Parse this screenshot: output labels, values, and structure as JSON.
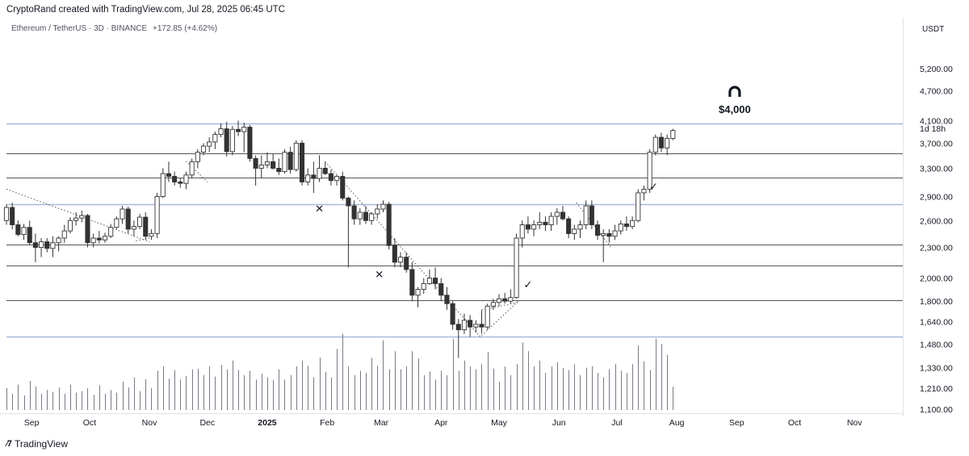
{
  "header": {
    "text": "CryptoRand created with TradingView.com, Jul 28, 2025 06:45 UTC"
  },
  "symbol": {
    "name": "Ethereum / TetherUS · 3D · BINANCE",
    "change": "+172.85 (+4.62%)"
  },
  "currency": "USDT",
  "countdown": "1d 18h",
  "footer": {
    "brand": "TradingView",
    "logo": "tradingview-logo-icon"
  },
  "chart_data": {
    "type": "candlestick",
    "yaxis": {
      "ticks": [
        1100,
        1210,
        1330,
        1480,
        1640,
        1800,
        2000,
        2300,
        2600,
        2900,
        3300,
        3700,
        4100,
        4700,
        5200
      ],
      "tick_labels": [
        "1,100.00",
        "1,210.00",
        "1,330.00",
        "1,480.00",
        "1,640.00",
        "1,800.00",
        "2,000.00",
        "2,300.00",
        "2,600.00",
        "2,900.00",
        "3,300.00",
        "3,700.00",
        "4,100.00",
        "4,700.00",
        "5,200.00"
      ],
      "scale": "log",
      "range": [
        1080,
        6000
      ]
    },
    "xaxis": {
      "labels": [
        {
          "date": "2024-09-01",
          "text": "Sep"
        },
        {
          "date": "2024-10-01",
          "text": "Oct"
        },
        {
          "date": "2024-11-01",
          "text": "Nov"
        },
        {
          "date": "2024-12-01",
          "text": "Dec"
        },
        {
          "date": "2025-01-01",
          "text": "2025"
        },
        {
          "date": "2025-02-01",
          "text": "Feb"
        },
        {
          "date": "2025-03-01",
          "text": "Mar"
        },
        {
          "date": "2025-04-01",
          "text": "Apr"
        },
        {
          "date": "2025-05-01",
          "text": "May"
        },
        {
          "date": "2025-06-01",
          "text": "Jun"
        },
        {
          "date": "2025-07-01",
          "text": "Jul"
        },
        {
          "date": "2025-08-01",
          "text": "Aug"
        },
        {
          "date": "2025-09-01",
          "text": "Sep"
        },
        {
          "date": "2025-10-01",
          "text": "Oct"
        },
        {
          "date": "2025-11-01",
          "text": "Nov"
        }
      ],
      "range": [
        "2024-08-19",
        "2025-11-26"
      ]
    },
    "levels": [
      {
        "price": 4050,
        "color": "#a9b8de"
      },
      {
        "price": 3530,
        "color": "#555555"
      },
      {
        "price": 3160,
        "color": "#555555"
      },
      {
        "price": 2800,
        "color": "#a9b8de"
      },
      {
        "price": 2330,
        "color": "#555555"
      },
      {
        "price": 2115,
        "color": "#555555"
      },
      {
        "price": 1810,
        "color": "#555555"
      },
      {
        "price": 1530,
        "color": "#a9b8de"
      }
    ],
    "trendlines": [
      {
        "from": [
          "2024-08-19",
          3000
        ],
        "to": [
          "2024-11-01",
          2360
        ]
      },
      {
        "from": [
          "2024-10-25",
          2370
        ],
        "to": [
          "2024-11-01",
          2400
        ]
      },
      {
        "from": [
          "2024-11-20",
          3410
        ],
        "to": [
          "2024-12-01",
          3100
        ]
      },
      {
        "from": [
          "2025-01-31",
          3400
        ],
        "to": [
          "2025-04-22",
          1520
        ]
      },
      {
        "from": [
          "2025-04-22",
          1540
        ],
        "to": [
          "2025-05-11",
          1800
        ]
      },
      {
        "from": [
          "2025-04-22",
          1730
        ],
        "to": [
          "2025-05-11",
          1790
        ]
      },
      {
        "from": [
          "2025-04-22",
          1730
        ],
        "to": [
          "2025-04-22",
          1540
        ]
      },
      {
        "from": [
          "2025-06-10",
          2820
        ],
        "to": [
          "2025-06-28",
          2300
        ]
      }
    ],
    "markers": [
      {
        "symbol": "✕",
        "date": "2025-01-28",
        "price": 2700
      },
      {
        "symbol": "✕",
        "date": "2025-02-28",
        "price": 2000
      },
      {
        "symbol": "✓",
        "date": "2025-05-16",
        "price": 1910
      },
      {
        "symbol": "✓",
        "date": "2025-07-20",
        "price": 2990
      }
    ],
    "target": {
      "text": "$4,000",
      "icon": "magnet-icon",
      "date": "2025-08-31"
    },
    "candles": [
      {
        "d": "2024-08-19",
        "o": 2600,
        "h": 2800,
        "l": 2550,
        "c": 2760
      },
      {
        "d": "2024-08-22",
        "o": 2760,
        "h": 2820,
        "l": 2500,
        "c": 2550
      },
      {
        "d": "2024-08-25",
        "o": 2550,
        "h": 2600,
        "l": 2420,
        "c": 2440
      },
      {
        "d": "2024-08-28",
        "o": 2440,
        "h": 2560,
        "l": 2380,
        "c": 2520
      },
      {
        "d": "2024-08-31",
        "o": 2520,
        "h": 2600,
        "l": 2330,
        "c": 2350
      },
      {
        "d": "2024-09-03",
        "o": 2350,
        "h": 2450,
        "l": 2150,
        "c": 2300
      },
      {
        "d": "2024-09-06",
        "o": 2300,
        "h": 2400,
        "l": 2200,
        "c": 2360
      },
      {
        "d": "2024-09-09",
        "o": 2360,
        "h": 2400,
        "l": 2250,
        "c": 2290
      },
      {
        "d": "2024-09-12",
        "o": 2290,
        "h": 2420,
        "l": 2200,
        "c": 2350
      },
      {
        "d": "2024-09-15",
        "o": 2350,
        "h": 2420,
        "l": 2260,
        "c": 2400
      },
      {
        "d": "2024-09-18",
        "o": 2400,
        "h": 2550,
        "l": 2350,
        "c": 2480
      },
      {
        "d": "2024-09-21",
        "o": 2480,
        "h": 2640,
        "l": 2450,
        "c": 2600
      },
      {
        "d": "2024-09-24",
        "o": 2600,
        "h": 2700,
        "l": 2540,
        "c": 2630
      },
      {
        "d": "2024-09-27",
        "o": 2630,
        "h": 2720,
        "l": 2580,
        "c": 2660
      },
      {
        "d": "2024-09-30",
        "o": 2660,
        "h": 2680,
        "l": 2300,
        "c": 2350
      },
      {
        "d": "2024-10-03",
        "o": 2350,
        "h": 2450,
        "l": 2300,
        "c": 2400
      },
      {
        "d": "2024-10-06",
        "o": 2400,
        "h": 2480,
        "l": 2340,
        "c": 2380
      },
      {
        "d": "2024-10-09",
        "o": 2380,
        "h": 2460,
        "l": 2350,
        "c": 2420
      },
      {
        "d": "2024-10-12",
        "o": 2420,
        "h": 2560,
        "l": 2400,
        "c": 2520
      },
      {
        "d": "2024-10-15",
        "o": 2520,
        "h": 2650,
        "l": 2500,
        "c": 2620
      },
      {
        "d": "2024-10-18",
        "o": 2620,
        "h": 2780,
        "l": 2560,
        "c": 2740
      },
      {
        "d": "2024-10-21",
        "o": 2740,
        "h": 2770,
        "l": 2450,
        "c": 2500
      },
      {
        "d": "2024-10-24",
        "o": 2500,
        "h": 2600,
        "l": 2420,
        "c": 2530
      },
      {
        "d": "2024-10-27",
        "o": 2530,
        "h": 2680,
        "l": 2500,
        "c": 2640
      },
      {
        "d": "2024-10-30",
        "o": 2640,
        "h": 2700,
        "l": 2380,
        "c": 2420
      },
      {
        "d": "2024-11-02",
        "o": 2420,
        "h": 2500,
        "l": 2380,
        "c": 2450
      },
      {
        "d": "2024-11-05",
        "o": 2450,
        "h": 2950,
        "l": 2400,
        "c": 2900
      },
      {
        "d": "2024-11-08",
        "o": 2900,
        "h": 3300,
        "l": 2880,
        "c": 3220
      },
      {
        "d": "2024-11-11",
        "o": 3220,
        "h": 3400,
        "l": 3100,
        "c": 3180
      },
      {
        "d": "2024-11-14",
        "o": 3180,
        "h": 3250,
        "l": 3050,
        "c": 3100
      },
      {
        "d": "2024-11-17",
        "o": 3100,
        "h": 3150,
        "l": 3020,
        "c": 3080
      },
      {
        "d": "2024-11-20",
        "o": 3080,
        "h": 3250,
        "l": 3000,
        "c": 3200
      },
      {
        "d": "2024-11-23",
        "o": 3200,
        "h": 3450,
        "l": 3150,
        "c": 3400
      },
      {
        "d": "2024-11-26",
        "o": 3400,
        "h": 3600,
        "l": 3300,
        "c": 3550
      },
      {
        "d": "2024-11-29",
        "o": 3550,
        "h": 3700,
        "l": 3500,
        "c": 3650
      },
      {
        "d": "2024-12-02",
        "o": 3650,
        "h": 3800,
        "l": 3550,
        "c": 3720
      },
      {
        "d": "2024-12-05",
        "o": 3720,
        "h": 3900,
        "l": 3600,
        "c": 3850
      },
      {
        "d": "2024-12-08",
        "o": 3850,
        "h": 4050,
        "l": 3800,
        "c": 3950
      },
      {
        "d": "2024-12-11",
        "o": 3950,
        "h": 4080,
        "l": 3480,
        "c": 3560
      },
      {
        "d": "2024-12-14",
        "o": 3560,
        "h": 4000,
        "l": 3500,
        "c": 3940
      },
      {
        "d": "2024-12-17",
        "o": 3940,
        "h": 4100,
        "l": 3820,
        "c": 3900
      },
      {
        "d": "2024-12-20",
        "o": 3900,
        "h": 4060,
        "l": 3550,
        "c": 3980
      },
      {
        "d": "2024-12-23",
        "o": 3980,
        "h": 4020,
        "l": 3400,
        "c": 3450
      },
      {
        "d": "2024-12-26",
        "o": 3450,
        "h": 3500,
        "l": 3050,
        "c": 3300
      },
      {
        "d": "2024-12-29",
        "o": 3300,
        "h": 3500,
        "l": 3150,
        "c": 3350
      },
      {
        "d": "2025-01-01",
        "o": 3350,
        "h": 3550,
        "l": 3300,
        "c": 3400
      },
      {
        "d": "2025-01-04",
        "o": 3400,
        "h": 3520,
        "l": 3280,
        "c": 3300
      },
      {
        "d": "2025-01-07",
        "o": 3300,
        "h": 3450,
        "l": 3200,
        "c": 3250
      },
      {
        "d": "2025-01-10",
        "o": 3250,
        "h": 3600,
        "l": 3220,
        "c": 3550
      },
      {
        "d": "2025-01-13",
        "o": 3550,
        "h": 3640,
        "l": 3220,
        "c": 3280
      },
      {
        "d": "2025-01-16",
        "o": 3280,
        "h": 3750,
        "l": 3250,
        "c": 3700
      },
      {
        "d": "2025-01-19",
        "o": 3700,
        "h": 3750,
        "l": 3050,
        "c": 3100
      },
      {
        "d": "2025-01-22",
        "o": 3100,
        "h": 3300,
        "l": 3050,
        "c": 3200
      },
      {
        "d": "2025-01-25",
        "o": 3200,
        "h": 3400,
        "l": 2950,
        "c": 3150
      },
      {
        "d": "2025-01-28",
        "o": 3150,
        "h": 3500,
        "l": 3100,
        "c": 3300
      },
      {
        "d": "2025-01-31",
        "o": 3300,
        "h": 3400,
        "l": 3200,
        "c": 3220
      },
      {
        "d": "2025-02-03",
        "o": 3220,
        "h": 3280,
        "l": 3050,
        "c": 3120
      },
      {
        "d": "2025-02-06",
        "o": 3120,
        "h": 3200,
        "l": 3050,
        "c": 3180
      },
      {
        "d": "2025-02-09",
        "o": 3180,
        "h": 3250,
        "l": 2850,
        "c": 2880
      },
      {
        "d": "2025-02-12",
        "o": 2880,
        "h": 2900,
        "l": 2100,
        "c": 2780
      },
      {
        "d": "2025-02-15",
        "o": 2780,
        "h": 2850,
        "l": 2550,
        "c": 2620
      },
      {
        "d": "2025-02-18",
        "o": 2620,
        "h": 2750,
        "l": 2550,
        "c": 2700
      },
      {
        "d": "2025-02-21",
        "o": 2700,
        "h": 2780,
        "l": 2560,
        "c": 2600
      },
      {
        "d": "2025-02-24",
        "o": 2600,
        "h": 2700,
        "l": 2550,
        "c": 2680
      },
      {
        "d": "2025-02-27",
        "o": 2680,
        "h": 2800,
        "l": 2620,
        "c": 2740
      },
      {
        "d": "2025-03-02",
        "o": 2740,
        "h": 2850,
        "l": 2700,
        "c": 2800
      },
      {
        "d": "2025-03-05",
        "o": 2800,
        "h": 2830,
        "l": 2280,
        "c": 2320
      },
      {
        "d": "2025-03-08",
        "o": 2320,
        "h": 2400,
        "l": 2100,
        "c": 2150
      },
      {
        "d": "2025-03-11",
        "o": 2150,
        "h": 2250,
        "l": 2100,
        "c": 2200
      },
      {
        "d": "2025-03-14",
        "o": 2200,
        "h": 2250,
        "l": 2050,
        "c": 2080
      },
      {
        "d": "2025-03-17",
        "o": 2080,
        "h": 2150,
        "l": 1800,
        "c": 1850
      },
      {
        "d": "2025-03-20",
        "o": 1850,
        "h": 1920,
        "l": 1750,
        "c": 1900
      },
      {
        "d": "2025-03-23",
        "o": 1900,
        "h": 2000,
        "l": 1860,
        "c": 1950
      },
      {
        "d": "2025-03-26",
        "o": 1950,
        "h": 2080,
        "l": 1940,
        "c": 2000
      },
      {
        "d": "2025-03-29",
        "o": 2000,
        "h": 2100,
        "l": 1900,
        "c": 1950
      },
      {
        "d": "2025-04-01",
        "o": 1950,
        "h": 2000,
        "l": 1800,
        "c": 1850
      },
      {
        "d": "2025-04-04",
        "o": 1850,
        "h": 1920,
        "l": 1730,
        "c": 1780
      },
      {
        "d": "2025-04-07",
        "o": 1780,
        "h": 1800,
        "l": 1580,
        "c": 1620
      },
      {
        "d": "2025-04-10",
        "o": 1620,
        "h": 1660,
        "l": 1390,
        "c": 1580
      },
      {
        "d": "2025-04-13",
        "o": 1580,
        "h": 1700,
        "l": 1550,
        "c": 1650
      },
      {
        "d": "2025-04-16",
        "o": 1650,
        "h": 1690,
        "l": 1530,
        "c": 1600
      },
      {
        "d": "2025-04-19",
        "o": 1600,
        "h": 1650,
        "l": 1560,
        "c": 1620
      },
      {
        "d": "2025-04-22",
        "o": 1620,
        "h": 1720,
        "l": 1560,
        "c": 1600
      },
      {
        "d": "2025-04-25",
        "o": 1600,
        "h": 1780,
        "l": 1580,
        "c": 1760
      },
      {
        "d": "2025-04-28",
        "o": 1760,
        "h": 1820,
        "l": 1730,
        "c": 1790
      },
      {
        "d": "2025-05-01",
        "o": 1790,
        "h": 1860,
        "l": 1760,
        "c": 1820
      },
      {
        "d": "2025-05-04",
        "o": 1820,
        "h": 1870,
        "l": 1780,
        "c": 1800
      },
      {
        "d": "2025-05-07",
        "o": 1800,
        "h": 1900,
        "l": 1780,
        "c": 1830
      },
      {
        "d": "2025-05-10",
        "o": 1830,
        "h": 2450,
        "l": 1820,
        "c": 2400
      },
      {
        "d": "2025-05-13",
        "o": 2400,
        "h": 2600,
        "l": 2300,
        "c": 2550
      },
      {
        "d": "2025-05-16",
        "o": 2550,
        "h": 2650,
        "l": 2450,
        "c": 2500
      },
      {
        "d": "2025-05-19",
        "o": 2500,
        "h": 2600,
        "l": 2420,
        "c": 2550
      },
      {
        "d": "2025-05-22",
        "o": 2550,
        "h": 2700,
        "l": 2500,
        "c": 2580
      },
      {
        "d": "2025-05-25",
        "o": 2580,
        "h": 2650,
        "l": 2480,
        "c": 2550
      },
      {
        "d": "2025-05-28",
        "o": 2550,
        "h": 2700,
        "l": 2480,
        "c": 2650
      },
      {
        "d": "2025-05-31",
        "o": 2650,
        "h": 2750,
        "l": 2550,
        "c": 2700
      },
      {
        "d": "2025-06-03",
        "o": 2700,
        "h": 2780,
        "l": 2600,
        "c": 2620
      },
      {
        "d": "2025-06-06",
        "o": 2620,
        "h": 2650,
        "l": 2400,
        "c": 2450
      },
      {
        "d": "2025-06-09",
        "o": 2450,
        "h": 2550,
        "l": 2380,
        "c": 2500
      },
      {
        "d": "2025-06-12",
        "o": 2500,
        "h": 2600,
        "l": 2400,
        "c": 2550
      },
      {
        "d": "2025-06-15",
        "o": 2550,
        "h": 2850,
        "l": 2500,
        "c": 2780
      },
      {
        "d": "2025-06-18",
        "o": 2780,
        "h": 2850,
        "l": 2500,
        "c": 2550
      },
      {
        "d": "2025-06-21",
        "o": 2550,
        "h": 2600,
        "l": 2380,
        "c": 2430
      },
      {
        "d": "2025-06-24",
        "o": 2430,
        "h": 2500,
        "l": 2150,
        "c": 2450
      },
      {
        "d": "2025-06-27",
        "o": 2450,
        "h": 2500,
        "l": 2350,
        "c": 2420
      },
      {
        "d": "2025-06-30",
        "o": 2420,
        "h": 2550,
        "l": 2380,
        "c": 2480
      },
      {
        "d": "2025-07-03",
        "o": 2480,
        "h": 2600,
        "l": 2440,
        "c": 2560
      },
      {
        "d": "2025-07-06",
        "o": 2560,
        "h": 2650,
        "l": 2480,
        "c": 2530
      },
      {
        "d": "2025-07-09",
        "o": 2530,
        "h": 2650,
        "l": 2500,
        "c": 2600
      },
      {
        "d": "2025-07-12",
        "o": 2600,
        "h": 3000,
        "l": 2580,
        "c": 2950
      },
      {
        "d": "2025-07-15",
        "o": 2950,
        "h": 3050,
        "l": 2850,
        "c": 3000
      },
      {
        "d": "2025-07-18",
        "o": 3000,
        "h": 3600,
        "l": 2950,
        "c": 3550
      },
      {
        "d": "2025-07-21",
        "o": 3550,
        "h": 3850,
        "l": 3500,
        "c": 3800
      },
      {
        "d": "2025-07-24",
        "o": 3800,
        "h": 3880,
        "l": 3550,
        "c": 3620
      },
      {
        "d": "2025-07-27",
        "o": 3620,
        "h": 3850,
        "l": 3500,
        "c": 3780
      },
      {
        "d": "2025-07-30",
        "o": 3780,
        "h": 3950,
        "l": 3750,
        "c": 3920
      }
    ],
    "volume": [
      60,
      45,
      70,
      40,
      80,
      65,
      45,
      55,
      50,
      62,
      45,
      70,
      48,
      52,
      60,
      42,
      68,
      45,
      55,
      48,
      78,
      62,
      90,
      52,
      85,
      60,
      108,
      120,
      86,
      110,
      84,
      94,
      112,
      114,
      96,
      120,
      92,
      124,
      112,
      136,
      110,
      96,
      108,
      84,
      100,
      90,
      82,
      112,
      84,
      96,
      120,
      136,
      122,
      90,
      144,
      105,
      90,
      168,
      210,
      120,
      96,
      108,
      102,
      144,
      122,
      192,
      112,
      162,
      112,
      120,
      162,
      142,
      96,
      106,
      84,
      108,
      96,
      196,
      108,
      136,
      120,
      112,
      126,
      160,
      114,
      78,
      120,
      96,
      126,
      186,
      162,
      120,
      136,
      102,
      120,
      132,
      116,
      110,
      126,
      96,
      116,
      120,
      102,
      90,
      112,
      126,
      108,
      102,
      126,
      178,
      134,
      110,
      196,
      182,
      152,
      64
    ]
  }
}
